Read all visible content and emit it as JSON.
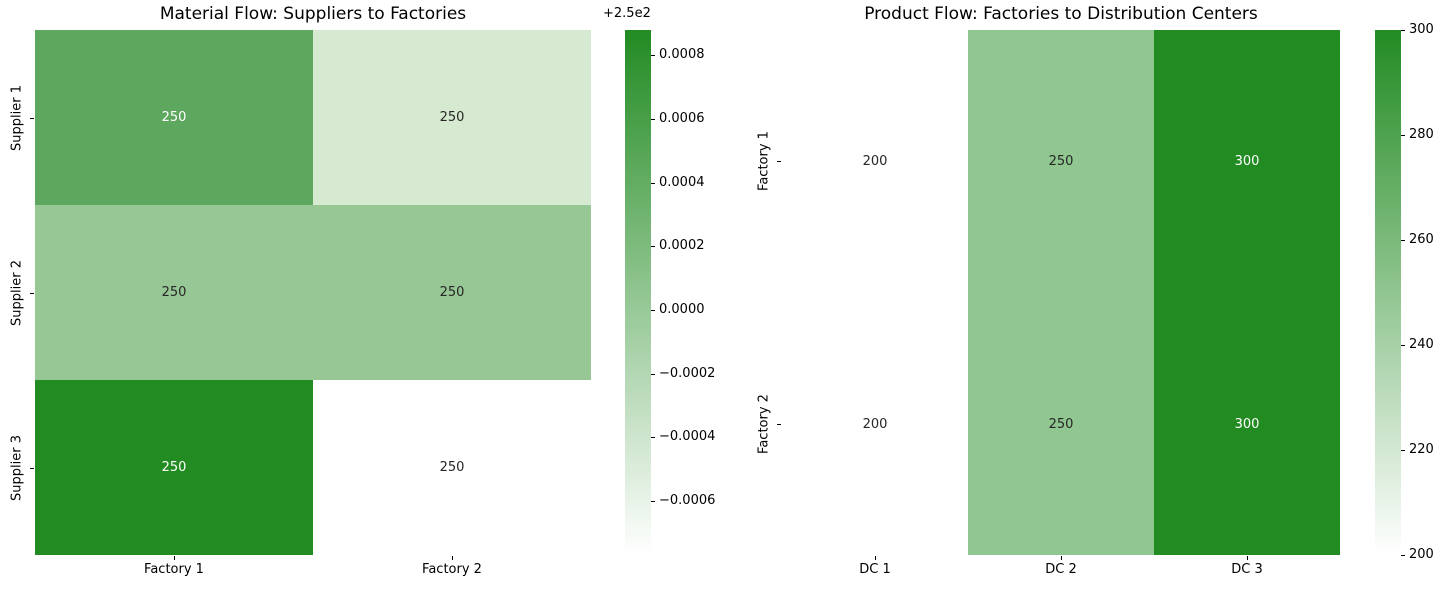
{
  "figure": {
    "background": "#ffffff",
    "colormap_low": "#ffffff",
    "colormap_high": "#228b22"
  },
  "chart_data": [
    {
      "type": "heatmap",
      "title": "Material Flow: Suppliers to Factories",
      "rows": [
        "Supplier 1",
        "Supplier 2",
        "Supplier 3"
      ],
      "columns": [
        "Factory 1",
        "Factory 2"
      ],
      "values": [
        [
          250,
          250
        ],
        [
          250,
          250
        ],
        [
          250,
          250
        ]
      ],
      "cell_labels": [
        [
          "250",
          "250"
        ],
        [
          "250",
          "250"
        ],
        [
          "250",
          "250"
        ]
      ],
      "cell_colors": [
        [
          "#5ea75e",
          "#d6ead1"
        ],
        [
          "#97c795",
          "#97c795"
        ],
        [
          "#228b22",
          "#ffffff"
        ]
      ],
      "cell_text_colors": [
        [
          "#ffffff",
          "#262626"
        ],
        [
          "#262626",
          "#262626"
        ],
        [
          "#ffffff",
          "#262626"
        ]
      ],
      "grid": false,
      "colorbar": {
        "position": "right",
        "offset_label": "+2.5e2",
        "tick_labels": [
          "0.0008",
          "0.0006",
          "0.0004",
          "0.0002",
          "0.0000",
          "−0.0002",
          "−0.0004",
          "−0.0006"
        ],
        "tick_values": [
          0.0008,
          0.0006,
          0.0004,
          0.0002,
          0.0,
          -0.0002,
          -0.0004,
          -0.0006
        ],
        "vmin": -0.00077,
        "vmax": 0.00088,
        "color_low": "#ffffff",
        "color_high": "#228b22"
      }
    },
    {
      "type": "heatmap",
      "title": "Product Flow: Factories to Distribution Centers",
      "rows": [
        "Factory 1",
        "Factory 2"
      ],
      "columns": [
        "DC 1",
        "DC 2",
        "DC 3"
      ],
      "values": [
        [
          200,
          250,
          300
        ],
        [
          200,
          250,
          300
        ]
      ],
      "cell_labels": [
        [
          "200",
          "250",
          "300"
        ],
        [
          "200",
          "250",
          "300"
        ]
      ],
      "cell_colors": [
        [
          "#ffffff",
          "#90c690",
          "#228b22"
        ],
        [
          "#ffffff",
          "#90c690",
          "#228b22"
        ]
      ],
      "cell_text_colors": [
        [
          "#262626",
          "#262626",
          "#ffffff"
        ],
        [
          "#262626",
          "#262626",
          "#ffffff"
        ]
      ],
      "grid": false,
      "colorbar": {
        "position": "right",
        "tick_labels": [
          "300",
          "280",
          "260",
          "240",
          "220",
          "200"
        ],
        "tick_values": [
          300,
          280,
          260,
          240,
          220,
          200
        ],
        "vmin": 200,
        "vmax": 300,
        "color_low": "#ffffff",
        "color_high": "#228b22"
      }
    }
  ]
}
